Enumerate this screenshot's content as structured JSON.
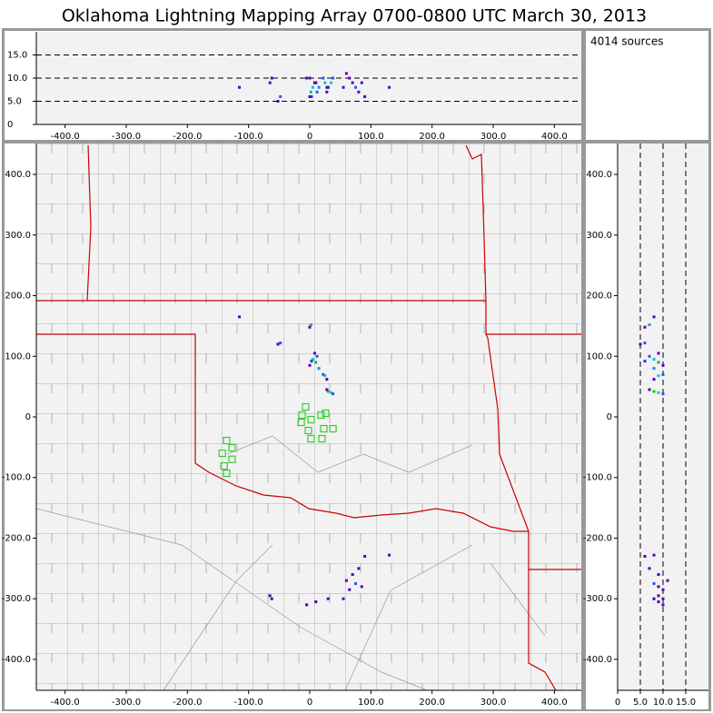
{
  "title": "Oklahoma Lightning Mapping Array   0700-0800 UTC  March 30, 2013",
  "sources_label": "4014 sources",
  "xlim": [
    -447,
    444
  ],
  "xticks": [
    {
      "value": -400,
      "label": "-400.0"
    },
    {
      "value": -300,
      "label": "-300.0"
    },
    {
      "value": -200,
      "label": "-200.0"
    },
    {
      "value": -100,
      "label": "-100.0"
    },
    0,
    {
      "value": 100,
      "label": "100.0"
    },
    {
      "value": 200,
      "label": "200.0"
    },
    {
      "value": 300,
      "label": "300.0"
    },
    {
      "value": 400,
      "label": "400.0"
    }
  ],
  "ylim": [
    -451,
    451
  ],
  "yticks": [
    {
      "value": -400,
      "label": "-400.0"
    },
    {
      "value": -300,
      "label": "-300.0"
    },
    {
      "value": -200,
      "label": "-200.0"
    },
    {
      "value": -100,
      "label": "-100.0"
    },
    0,
    {
      "value": 100,
      "label": "100.0"
    },
    {
      "value": 200,
      "label": "200.0"
    },
    {
      "value": 300,
      "label": "300.0"
    },
    {
      "value": 400,
      "label": "400.0"
    }
  ],
  "zlim": [
    0,
    20
  ],
  "zticks": [
    0,
    {
      "value": 5,
      "label": "5.0"
    },
    {
      "value": 10,
      "label": "10.0"
    },
    {
      "value": 15,
      "label": "15.0"
    }
  ],
  "station_color": "#33cc33",
  "stations": [
    {
      "x": -6.7,
      "y": 16.5
    },
    {
      "x": -12.6,
      "y": 3
    },
    {
      "x": 2.2,
      "y": -4.5
    },
    {
      "x": 18.5,
      "y": 3
    },
    {
      "x": -14,
      "y": -9
    },
    {
      "x": -2.2,
      "y": -22.5
    },
    {
      "x": 23,
      "y": -19.5
    },
    {
      "x": 38,
      "y": -19.5
    },
    {
      "x": 2.2,
      "y": -36
    },
    {
      "x": 20,
      "y": -36
    },
    {
      "x": 26,
      "y": 6
    },
    {
      "x": -136,
      "y": -39
    },
    {
      "x": -127,
      "y": -51
    },
    {
      "x": -143,
      "y": -60
    },
    {
      "x": -127,
      "y": -70
    },
    {
      "x": -140,
      "y": -81
    },
    {
      "x": -136,
      "y": -93
    }
  ],
  "sources": [
    {
      "x": 5,
      "y": 95,
      "z": 8,
      "color": "#00c8c8"
    },
    {
      "x": 10,
      "y": 90,
      "z": 9,
      "color": "#00b050"
    },
    {
      "x": 12,
      "y": 100,
      "z": 7,
      "color": "#3050ff"
    },
    {
      "x": 0,
      "y": 85,
      "z": 10,
      "color": "#5000b0"
    },
    {
      "x": 15,
      "y": 80,
      "z": 8,
      "color": "#0090ff"
    },
    {
      "x": 8,
      "y": 105,
      "z": 9,
      "color": "#5000b0"
    },
    {
      "x": 3,
      "y": 92,
      "z": 6,
      "color": "#0040ff"
    },
    {
      "x": 25,
      "y": 68,
      "z": 9,
      "color": "#00c8c8"
    },
    {
      "x": 28,
      "y": 62,
      "z": 8,
      "color": "#5000b0"
    },
    {
      "x": 22,
      "y": 70,
      "z": 10,
      "color": "#3050ff"
    },
    {
      "x": 30,
      "y": 42,
      "z": 8,
      "color": "#00d000"
    },
    {
      "x": 35,
      "y": 40,
      "z": 9,
      "color": "#00c8c8"
    },
    {
      "x": 28,
      "y": 45,
      "z": 7,
      "color": "#5000b0"
    },
    {
      "x": 38,
      "y": 38,
      "z": 10,
      "color": "#3050ff"
    },
    {
      "x": 2,
      "y": 152,
      "z": 7,
      "color": "#00b0b0"
    },
    {
      "x": 0,
      "y": 148,
      "z": 6,
      "color": "#5000b0"
    },
    {
      "x": -48,
      "y": 122,
      "z": 6,
      "color": "#3050ff"
    },
    {
      "x": -52,
      "y": 120,
      "z": 5,
      "color": "#5000b0"
    },
    {
      "x": -115,
      "y": 165,
      "z": 8,
      "color": "#5000b0"
    },
    {
      "x": 70,
      "y": -260,
      "z": 9,
      "color": "#5000b0"
    },
    {
      "x": 75,
      "y": -275,
      "z": 8,
      "color": "#3050ff"
    },
    {
      "x": 65,
      "y": -285,
      "z": 10,
      "color": "#5000b0"
    },
    {
      "x": 80,
      "y": -250,
      "z": 7,
      "color": "#5000b0"
    },
    {
      "x": 60,
      "y": -270,
      "z": 11,
      "color": "#5000b0"
    },
    {
      "x": 85,
      "y": -280,
      "z": 9,
      "color": "#5000b0"
    },
    {
      "x": 90,
      "y": -230,
      "z": 6,
      "color": "#5000b0"
    },
    {
      "x": 55,
      "y": -300,
      "z": 8,
      "color": "#5000b0"
    },
    {
      "x": -65,
      "y": -295,
      "z": 9,
      "color": "#5000b0"
    },
    {
      "x": -62,
      "y": -300,
      "z": 10,
      "color": "#5000b0"
    },
    {
      "x": 10,
      "y": -305,
      "z": 9,
      "color": "#5000b0"
    },
    {
      "x": 30,
      "y": -300,
      "z": 8,
      "color": "#5000b0"
    },
    {
      "x": -5,
      "y": -310,
      "z": 10,
      "color": "#5000b0"
    },
    {
      "x": 130,
      "y": -228,
      "z": 8,
      "color": "#5000b0"
    }
  ]
}
